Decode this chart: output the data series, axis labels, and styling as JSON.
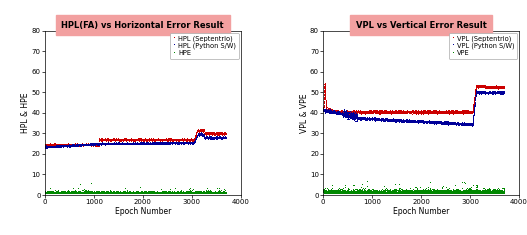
{
  "left_title": "HPL(FA) vs Horizontal Error Result",
  "right_title": "VPL vs Vertical Error Result",
  "left_ylabel": "HPL & HPE",
  "right_ylabel": "VPL & VPE",
  "xlabel": "Epoch Number",
  "xlim": [
    0,
    4000
  ],
  "ylim": [
    0,
    80
  ],
  "yticks": [
    0,
    10,
    20,
    30,
    40,
    50,
    60,
    70,
    80
  ],
  "xticks": [
    0,
    1000,
    2000,
    3000,
    4000
  ],
  "title_bg_color": "#f2a0a0",
  "left_legend": [
    "HPL (Septentrio)",
    "HPL (Python S/W)",
    "HPE"
  ],
  "right_legend": [
    "VPL (Septentrio)",
    "VPL (Python S/W)",
    "VPE"
  ],
  "red_color": "#cc0000",
  "blue_color": "#000099",
  "green_color": "#008800",
  "n_epochs": 3700,
  "noise_seed": 42
}
